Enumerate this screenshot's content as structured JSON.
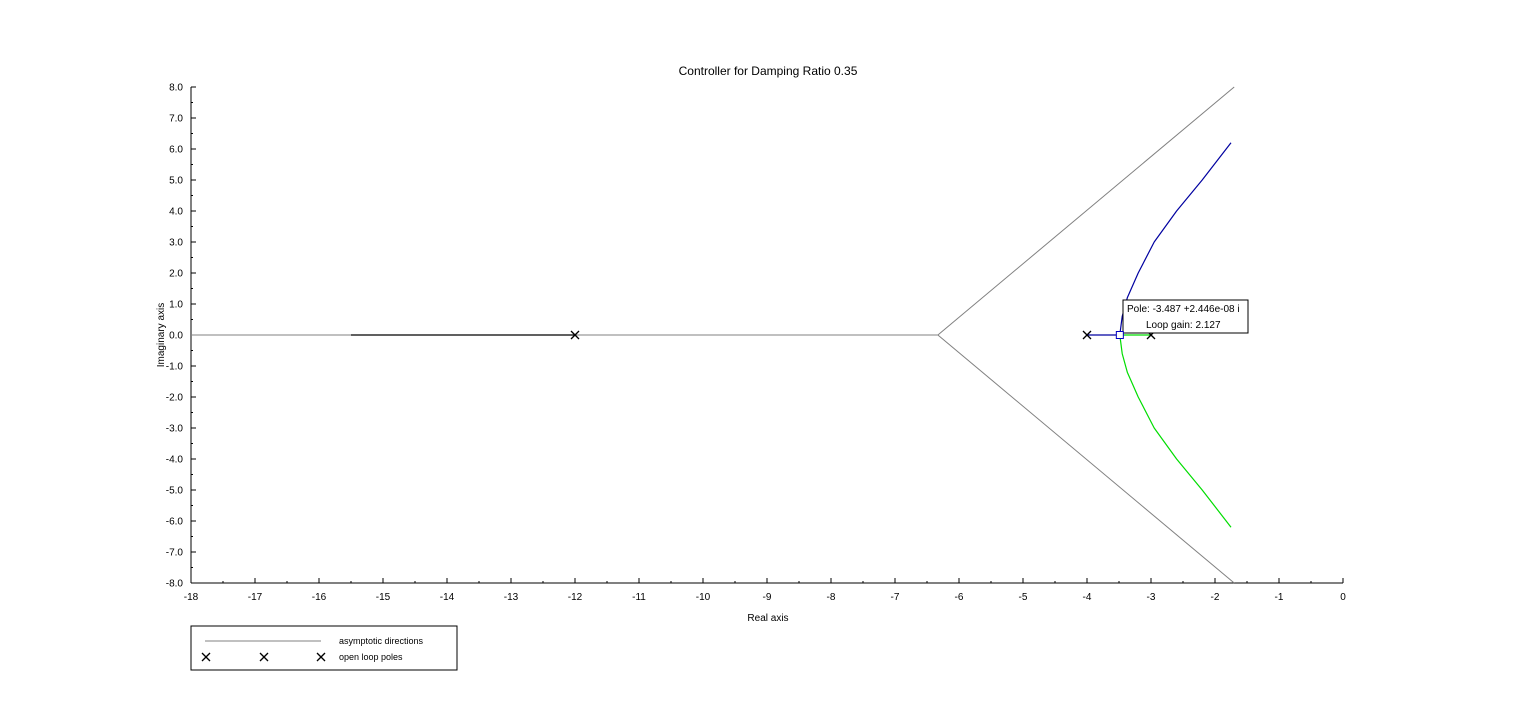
{
  "chart_data": {
    "type": "line",
    "title": "Controller for Damping Ratio 0.35",
    "xlabel": "Real axis",
    "ylabel": "Imaginary axis",
    "xlim": [
      -18,
      0
    ],
    "ylim": [
      -8,
      8
    ],
    "xticks": [
      -18,
      -17,
      -16,
      -15,
      -14,
      -13,
      -12,
      -11,
      -10,
      -9,
      -8,
      -7,
      -6,
      -5,
      -4,
      -3,
      -2,
      -1,
      0
    ],
    "yticks": [
      -8,
      -7,
      -6,
      -5,
      -4,
      -3,
      -2,
      -1,
      0,
      1,
      2,
      3,
      4,
      5,
      6,
      7,
      8
    ],
    "grid": false,
    "legend_position": "bottom-left",
    "legend": [
      {
        "label": "asymptotic directions",
        "kind": "line",
        "color": "#808080"
      },
      {
        "label": "open loop poles",
        "kind": "marker",
        "marker": "×",
        "color": "#000000"
      }
    ],
    "asymptotes": {
      "color": "#808080",
      "center": [
        -6.33,
        0
      ],
      "lines": [
        {
          "from": [
            -6.33,
            0
          ],
          "to": [
            -1.7,
            8
          ]
        },
        {
          "from": [
            -6.33,
            0
          ],
          "to": [
            -1.7,
            -8
          ]
        },
        {
          "from": [
            -18,
            0
          ],
          "to": [
            -6.33,
            0
          ]
        }
      ]
    },
    "series": [
      {
        "color": "#000000",
        "points": [
          [
            -15.5,
            0
          ],
          [
            -12,
            0
          ]
        ]
      },
      {
        "color": "#0000a0",
        "points": [
          [
            -4,
            0
          ],
          [
            -3.487,
            0
          ],
          [
            -3.45,
            0.6
          ],
          [
            -3.37,
            1.2
          ],
          [
            -3.2,
            2.0
          ],
          [
            -2.95,
            3.0
          ],
          [
            -2.6,
            4.0
          ],
          [
            -2.2,
            5.0
          ],
          [
            -1.75,
            6.2
          ]
        ]
      },
      {
        "color": "#00dd00",
        "points": [
          [
            -3,
            0
          ],
          [
            -3.487,
            0
          ],
          [
            -3.45,
            -0.6
          ],
          [
            -3.37,
            -1.2
          ],
          [
            -3.2,
            -2.0
          ],
          [
            -2.95,
            -3.0
          ],
          [
            -2.6,
            -4.0
          ],
          [
            -2.2,
            -5.0
          ],
          [
            -1.75,
            -6.2
          ]
        ]
      }
    ],
    "open_loop_poles": [
      [
        -12,
        0
      ],
      [
        -4,
        0
      ],
      [
        -3,
        0
      ]
    ],
    "datatip": {
      "point": [
        -3.487,
        0
      ],
      "lines": [
        "Pole: -3.487 +2.446e-08 i",
        "Loop gain: 2.127"
      ]
    }
  }
}
